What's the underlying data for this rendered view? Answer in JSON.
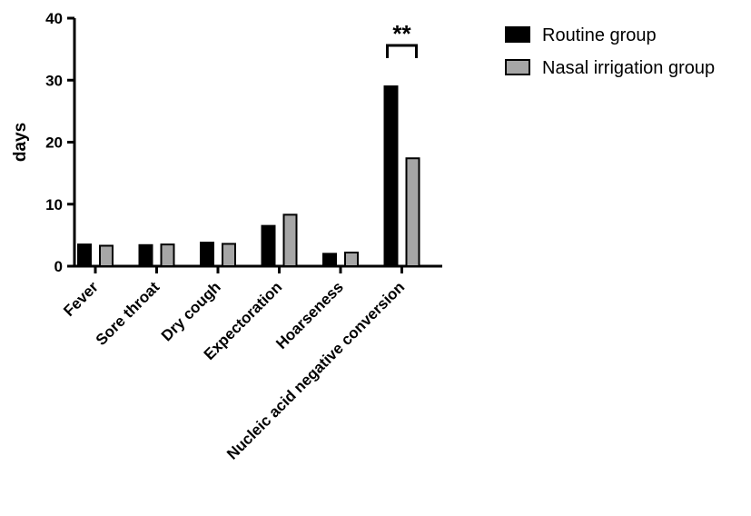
{
  "chart_data": {
    "type": "bar",
    "title": "",
    "xlabel": "",
    "ylabel": "days",
    "ylim": [
      0,
      40
    ],
    "yticks": [
      0,
      10,
      20,
      30,
      40
    ],
    "grid": false,
    "legend_position": "top-right",
    "categories": [
      "Fever",
      "Sore throat",
      "Dry cough",
      "Expectoration",
      "Hoarseness",
      "Nucleic acid negative conversion"
    ],
    "series": [
      {
        "name": "Routine group",
        "color": "#000000",
        "values": [
          3.5,
          3.4,
          3.8,
          6.5,
          2.0,
          29.0
        ]
      },
      {
        "name": "Nasal irrigation group",
        "color": "#a6a6a6",
        "values": [
          3.3,
          3.5,
          3.6,
          8.3,
          2.2,
          17.4
        ]
      }
    ],
    "annotations": [
      {
        "text": "**",
        "category_index": 5
      }
    ]
  }
}
